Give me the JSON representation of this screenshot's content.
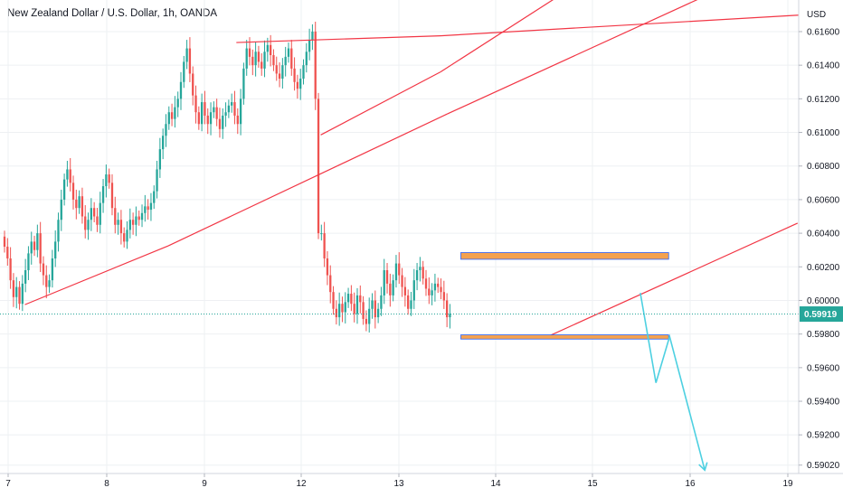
{
  "header": {
    "title": "New Zealand Dollar / U.S. Dollar, 1h, OANDA"
  },
  "colors": {
    "up": "#26a69a",
    "down": "#ef5350",
    "trendline": "#f23645",
    "projection": "#4dd0e1",
    "zone_fill": "#f4a14f",
    "zone_border": "#2962ff",
    "price_line": "#26a69a",
    "grid": "#eef0f3",
    "axis_border": "#d1d4dc"
  },
  "chart_data": {
    "type": "candlestick",
    "symbol": "NZD/USD",
    "timeframe": "1h",
    "currency_label": "USD",
    "y_range": [
      0.5897,
      0.6178
    ],
    "x_range": [
      7.0,
      19.1
    ],
    "y_ticks": [
      "0.61600",
      "0.61400",
      "0.61200",
      "0.61000",
      "0.60800",
      "0.60600",
      "0.60400",
      "0.60200",
      "0.60000",
      "0.59800",
      "0.59600",
      "0.59400",
      "0.59200",
      "0.59020"
    ],
    "x_ticks": [
      {
        "label": "7",
        "x": 7
      },
      {
        "label": "8",
        "x": 8
      },
      {
        "label": "9",
        "x": 9
      },
      {
        "label": "12",
        "x": 10
      },
      {
        "label": "13",
        "x": 11
      },
      {
        "label": "14",
        "x": 12
      },
      {
        "label": "15",
        "x": 13
      },
      {
        "label": "16",
        "x": 14
      },
      {
        "label": "19",
        "x": 15
      }
    ],
    "last_price": "0.59919",
    "candles_close": [
      0.6032,
      0.6025,
      0.6012,
      0.6002,
      0.6008,
      0.5998,
      0.601,
      0.6018,
      0.6028,
      0.6035,
      0.603,
      0.604,
      0.6022,
      0.6015,
      0.6008,
      0.6012,
      0.6025,
      0.6035,
      0.6048,
      0.606,
      0.6072,
      0.6078,
      0.607,
      0.606,
      0.6055,
      0.6062,
      0.605,
      0.6042,
      0.6048,
      0.6055,
      0.605,
      0.6045,
      0.6058,
      0.6068,
      0.6075,
      0.607,
      0.6055,
      0.6045,
      0.6048,
      0.604,
      0.6035,
      0.6042,
      0.6048,
      0.6045,
      0.605,
      0.6048,
      0.6052,
      0.6056,
      0.6054,
      0.6058,
      0.6065,
      0.6078,
      0.609,
      0.6098,
      0.6105,
      0.6112,
      0.6108,
      0.6115,
      0.612,
      0.613,
      0.6142,
      0.615,
      0.6135,
      0.6122,
      0.6112,
      0.6105,
      0.6118,
      0.611,
      0.6105,
      0.6112,
      0.6115,
      0.6108,
      0.6102,
      0.611,
      0.6112,
      0.6116,
      0.6118,
      0.611,
      0.6105,
      0.612,
      0.6138,
      0.615,
      0.6145,
      0.614,
      0.6148,
      0.6142,
      0.6138,
      0.6148,
      0.6152,
      0.6146,
      0.614,
      0.6135,
      0.6132,
      0.614,
      0.6145,
      0.615,
      0.6138,
      0.613,
      0.6126,
      0.6132,
      0.614,
      0.6148,
      0.6155,
      0.616,
      0.612,
      0.604,
      0.604,
      0.6025,
      0.6015,
      0.6005,
      0.5995,
      0.599,
      0.5998,
      0.5993,
      0.5999,
      0.6004,
      0.5998,
      0.5992,
      0.6003,
      0.5999,
      0.5989,
      0.5986,
      0.5995,
      0.6,
      0.599,
      0.5995,
      0.6003,
      0.6018,
      0.601,
      0.6003,
      0.6012,
      0.6022,
      0.6015,
      0.6008,
      0.6003,
      0.5995,
      0.6,
      0.6012,
      0.6018,
      0.602,
      0.6013,
      0.6007,
      0.6003,
      0.6006,
      0.601,
      0.6008,
      0.6005,
      0.6,
      0.599,
      0.5992
    ],
    "annotations": [
      {
        "type": "trendline",
        "from": [
          7.17,
          0.59975
        ],
        "to": [
          8.63,
          0.60325
        ]
      },
      {
        "type": "trendline",
        "from": [
          8.63,
          0.60325
        ],
        "to": [
          11.5,
          0.6111
        ]
      },
      {
        "type": "trendline",
        "from": [
          11.5,
          0.6111
        ],
        "to": [
          14.73,
          0.61965
        ]
      },
      {
        "type": "trendline",
        "from": [
          9.33,
          0.61535
        ],
        "to": [
          11.43,
          0.61575
        ]
      },
      {
        "type": "trendline",
        "from": [
          11.43,
          0.61575
        ],
        "to": [
          15.17,
          0.617
        ]
      },
      {
        "type": "trendline",
        "from": [
          10.2,
          0.60985
        ],
        "to": [
          11.43,
          0.6136
        ]
      },
      {
        "type": "trendline",
        "from": [
          11.43,
          0.6136
        ],
        "to": [
          14.74,
          0.6259
        ]
      },
      {
        "type": "trendline",
        "from": [
          12.5,
          0.59775
        ],
        "to": [
          15.1,
          0.6046
        ]
      },
      {
        "type": "rectangle",
        "from": [
          11.64,
          0.60285
        ],
        "to": [
          13.78,
          0.60245
        ]
      },
      {
        "type": "rectangle",
        "from": [
          11.64,
          0.59795
        ],
        "to": [
          13.78,
          0.5977
        ]
      },
      {
        "type": "projection",
        "points": [
          [
            13.49,
            0.60045
          ],
          [
            13.65,
            0.5951
          ],
          [
            13.79,
            0.59785
          ],
          [
            14.15,
            0.5899
          ]
        ]
      }
    ]
  }
}
